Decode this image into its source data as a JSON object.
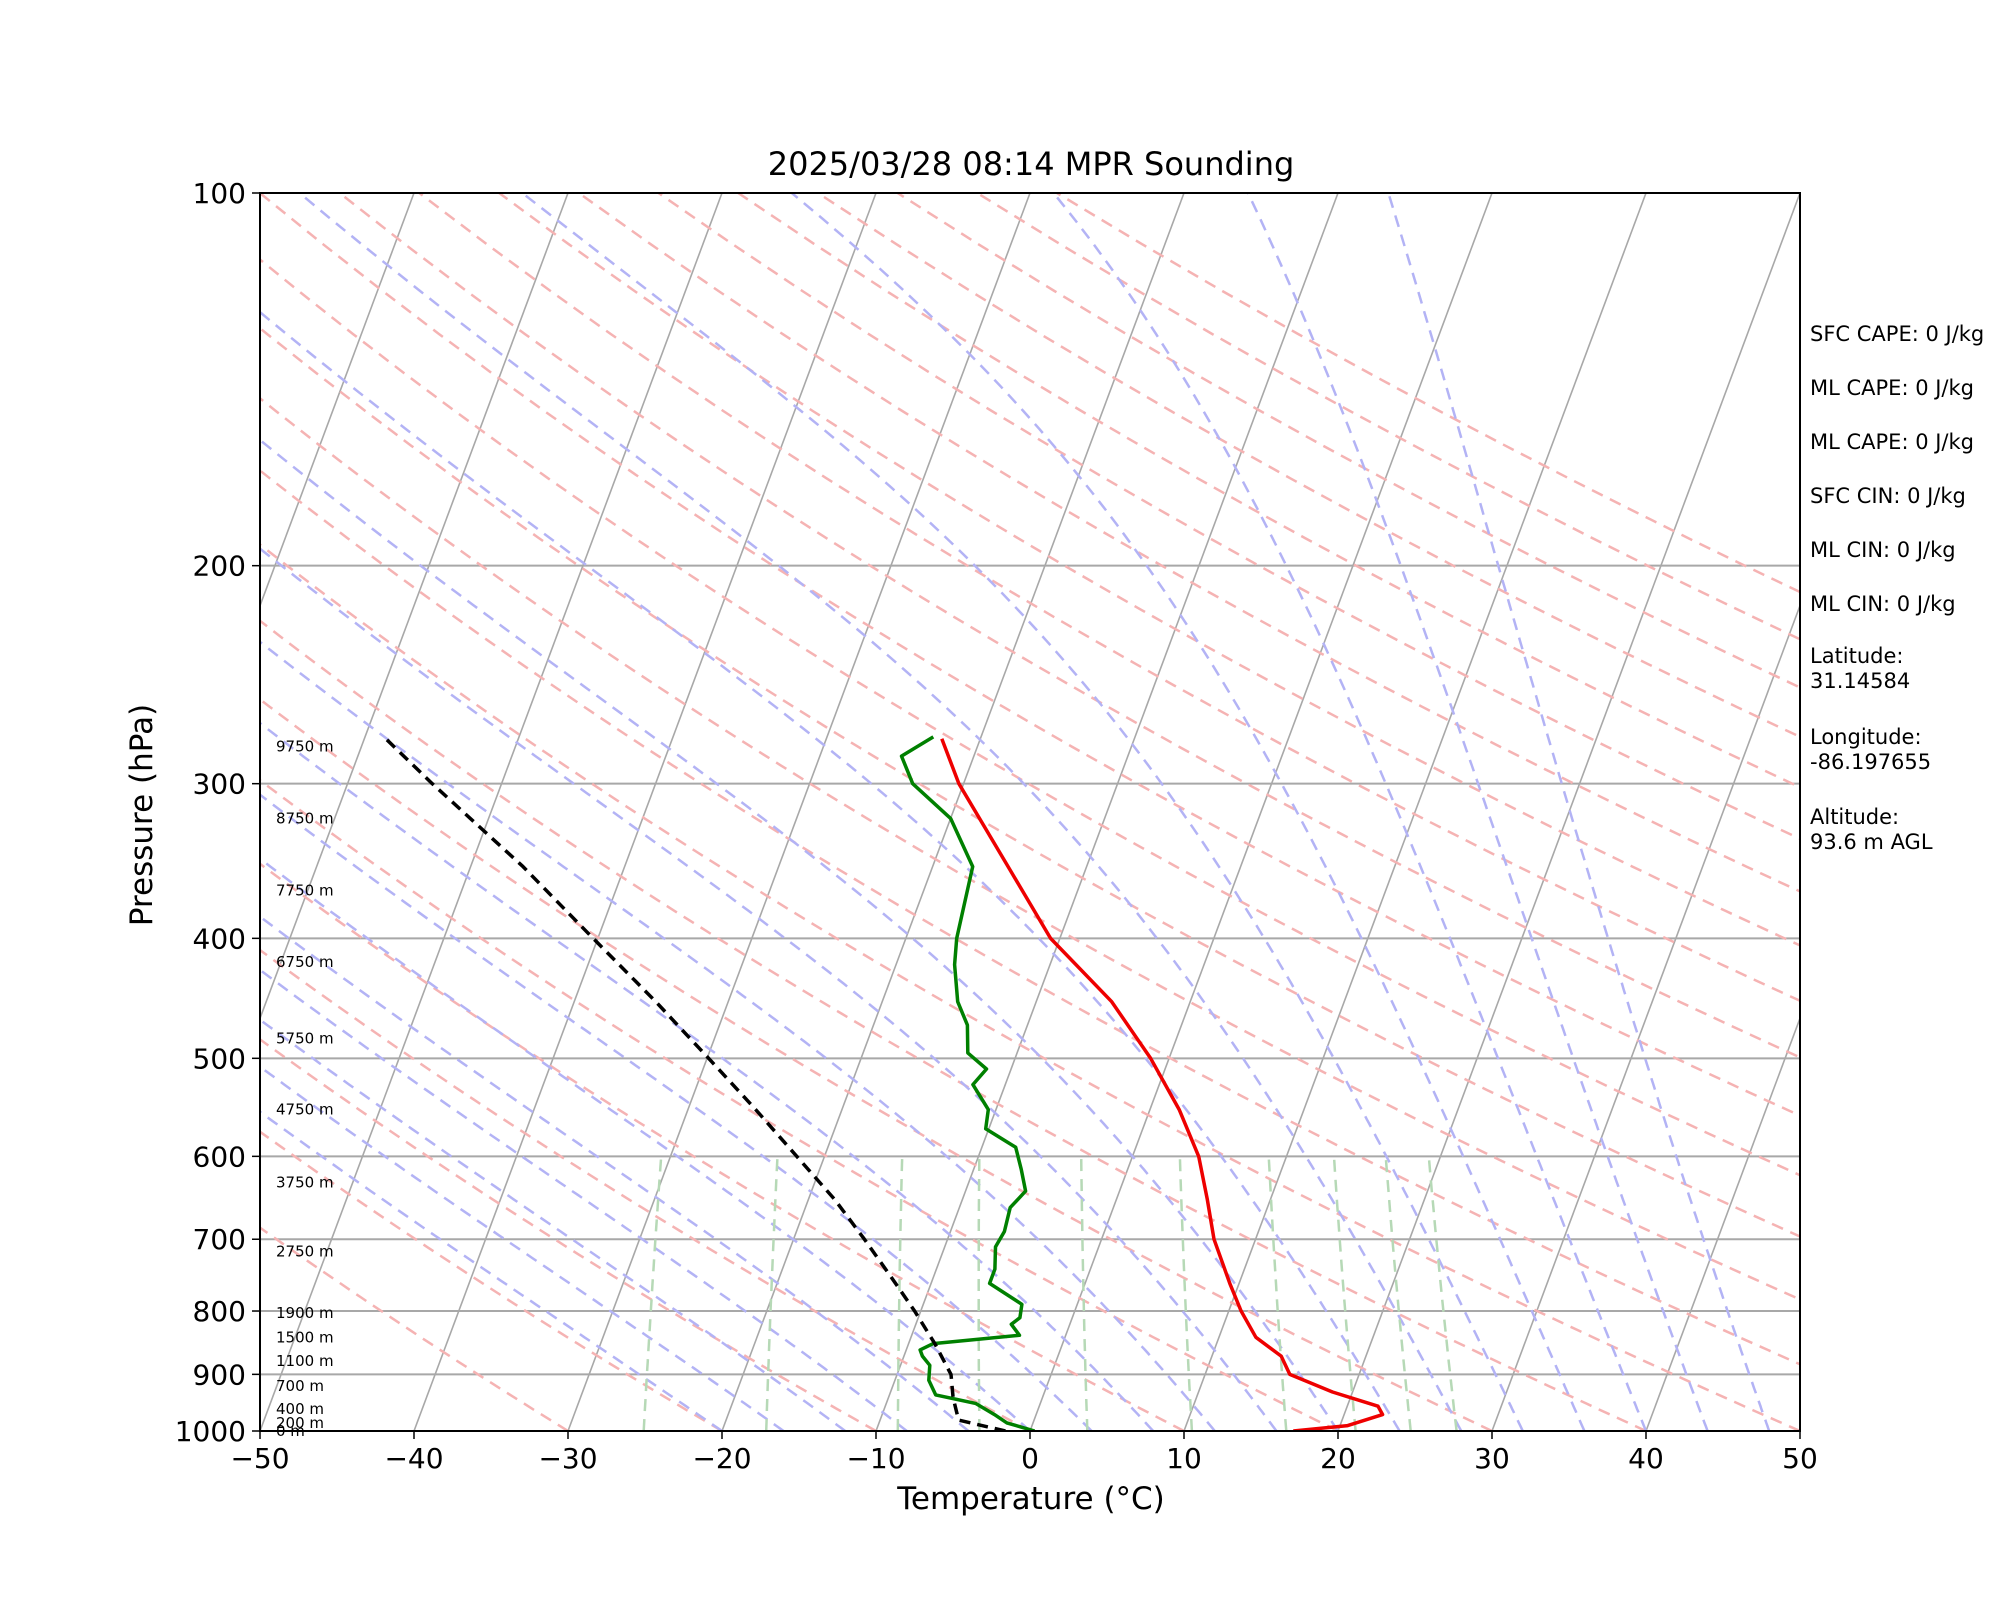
{
  "chart_data": {
    "type": "line",
    "title": "2025/03/28 08:14 MPR Sounding",
    "xlabel": "Temperature (°C)",
    "ylabel": "Pressure (hPa)",
    "xlim": [
      -50,
      50
    ],
    "ylim": [
      1000,
      100
    ],
    "y_scale": "log",
    "x_ticks": [
      "−50",
      "−40",
      "−30",
      "−20",
      "−10",
      "0",
      "10",
      "20",
      "30",
      "40",
      "50"
    ],
    "y_ticks": [
      "100",
      "200",
      "300",
      "400",
      "500",
      "600",
      "700",
      "800",
      "900",
      "1000"
    ],
    "grid": "isobars at 200, 300, 400, 500, 600, 700, 800, 900 hPa",
    "background_lines": {
      "isotherms": "solid gray, skewed",
      "dry_adiabats": "dashed light red",
      "moist_adiabats": "dashed light blue",
      "mixing_ratio_lines": "dashed light green (1000–600 hPa)"
    },
    "series": [
      {
        "color": "#ee0000",
        "style": "solid",
        "points": [
          [
            1000,
            17.1
          ],
          [
            990,
            20.5
          ],
          [
            970,
            22.5
          ],
          [
            955,
            22.0
          ],
          [
            930,
            18.7
          ],
          [
            900,
            15.5
          ],
          [
            870,
            14.5
          ],
          [
            840,
            12.4
          ],
          [
            800,
            10.8
          ],
          [
            760,
            9.4
          ],
          [
            700,
            7.3
          ],
          [
            650,
            5.9
          ],
          [
            600,
            4.3
          ],
          [
            550,
            1.9
          ],
          [
            500,
            -1.2
          ],
          [
            450,
            -5.1
          ],
          [
            400,
            -10.6
          ],
          [
            350,
            -15.1
          ],
          [
            300,
            -20.3
          ],
          [
            276,
            -22.5
          ]
        ]
      },
      {
        "color": "#008000",
        "style": "solid",
        "points": [
          [
            1000,
            0.3
          ],
          [
            985,
            -1.7
          ],
          [
            970,
            -2.7
          ],
          [
            950,
            -4.2
          ],
          [
            935,
            -7.0
          ],
          [
            910,
            -7.8
          ],
          [
            885,
            -8.1
          ],
          [
            870,
            -8.8
          ],
          [
            860,
            -9.1
          ],
          [
            850,
            -8.4
          ],
          [
            837,
            -3.0
          ],
          [
            820,
            -3.8
          ],
          [
            810,
            -3.4
          ],
          [
            790,
            -3.6
          ],
          [
            760,
            -6.2
          ],
          [
            740,
            -6.2
          ],
          [
            710,
            -6.7
          ],
          [
            690,
            -6.5
          ],
          [
            660,
            -6.7
          ],
          [
            640,
            -6.1
          ],
          [
            615,
            -6.9
          ],
          [
            590,
            -7.8
          ],
          [
            570,
            -10.2
          ],
          [
            550,
            -10.5
          ],
          [
            525,
            -12.1
          ],
          [
            510,
            -11.6
          ],
          [
            495,
            -13.2
          ],
          [
            470,
            -13.9
          ],
          [
            450,
            -15.1
          ],
          [
            420,
            -16.2
          ],
          [
            400,
            -16.7
          ],
          [
            350,
            -17.4
          ],
          [
            320,
            -20.0
          ],
          [
            300,
            -23.3
          ],
          [
            285,
            -24.7
          ],
          [
            275,
            -23.1
          ]
        ]
      },
      {
        "color": "#000000",
        "style": "dashed",
        "points": [
          [
            1000,
            -1.6
          ],
          [
            980,
            -4.9
          ],
          [
            940,
            -5.8
          ],
          [
            900,
            -6.5
          ],
          [
            850,
            -8.3
          ],
          [
            800,
            -10.4
          ],
          [
            750,
            -12.8
          ],
          [
            700,
            -15.4
          ],
          [
            650,
            -18.3
          ],
          [
            600,
            -21.8
          ],
          [
            550,
            -25.6
          ],
          [
            500,
            -29.9
          ],
          [
            450,
            -34.7
          ],
          [
            400,
            -40.3
          ],
          [
            350,
            -46.6
          ],
          [
            300,
            -54.5
          ],
          [
            276,
            -58.6
          ]
        ]
      }
    ],
    "height_labels": [
      {
        "p": 1000,
        "label": "0 m"
      },
      {
        "p": 985,
        "label": "200 m"
      },
      {
        "p": 960,
        "label": "400 m"
      },
      {
        "p": 920,
        "label": "700 m"
      },
      {
        "p": 878,
        "label": "1100 m"
      },
      {
        "p": 840,
        "label": "1500 m"
      },
      {
        "p": 803,
        "label": "1900 m"
      },
      {
        "p": 716,
        "label": "2750 m"
      },
      {
        "p": 630,
        "label": "3750 m"
      },
      {
        "p": 550,
        "label": "4750 m"
      },
      {
        "p": 482,
        "label": "5750 m"
      },
      {
        "p": 418,
        "label": "6750 m"
      },
      {
        "p": 366,
        "label": "7750 m"
      },
      {
        "p": 320,
        "label": "8750 m"
      },
      {
        "p": 280,
        "label": "9750 m"
      }
    ]
  },
  "sidebar": {
    "items": [
      "SFC CAPE: 0 J/kg",
      "ML CAPE: 0 J/kg",
      "ML CAPE: 0 J/kg",
      "SFC CIN: 0 J/kg",
      "ML CIN: 0 J/kg",
      "ML CIN: 0 J/kg",
      "Latitude:\n31.14584",
      "Longitude:\n-86.197655",
      "Altitude:\n93.6 m AGL"
    ]
  },
  "colors": {
    "isotherm": "#a8a8a8",
    "isobar": "#a8a8a8",
    "dry_adiabat": "#f5b3b3",
    "moist_adiabat": "#b3b3f5",
    "mixing_ratio": "#b6d9b6"
  }
}
